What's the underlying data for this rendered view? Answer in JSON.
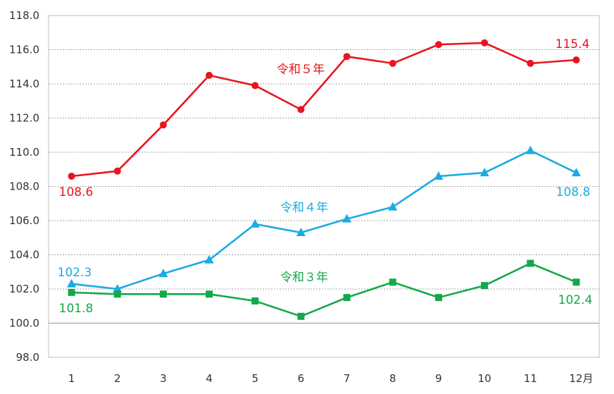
{
  "chart_data": {
    "type": "line",
    "title": "",
    "xlabel": "",
    "ylabel": "",
    "categories": [
      "1",
      "2",
      "3",
      "4",
      "5",
      "6",
      "7",
      "8",
      "9",
      "10",
      "11",
      "12月"
    ],
    "ylim": [
      98.0,
      118.0
    ],
    "yticks": [
      "98.0",
      "100.0",
      "102.0",
      "104.0",
      "106.0",
      "108.0",
      "110.0",
      "112.0",
      "114.0",
      "116.0",
      "118.0"
    ],
    "grid": true,
    "legend": "none",
    "series": [
      {
        "name": "令和５年",
        "color": "#e8141e",
        "marker": "circle",
        "values": [
          108.6,
          108.9,
          111.6,
          114.5,
          113.9,
          112.5,
          115.6,
          115.2,
          116.3,
          116.4,
          115.2,
          115.4
        ],
        "first_label": "108.6",
        "last_label": "115.4"
      },
      {
        "name": "令和４年",
        "color": "#1aabe2",
        "marker": "triangle",
        "values": [
          102.3,
          102.0,
          102.9,
          103.7,
          105.8,
          105.3,
          106.1,
          106.8,
          108.6,
          108.8,
          110.1,
          108.8
        ],
        "first_label": "102.3",
        "last_label": "108.8"
      },
      {
        "name": "令和３年",
        "color": "#14a84a",
        "marker": "square",
        "values": [
          101.8,
          101.7,
          101.7,
          101.7,
          101.3,
          100.4,
          101.5,
          102.4,
          101.5,
          102.2,
          103.5,
          102.4
        ],
        "first_label": "101.8",
        "last_label": "102.4"
      }
    ]
  }
}
